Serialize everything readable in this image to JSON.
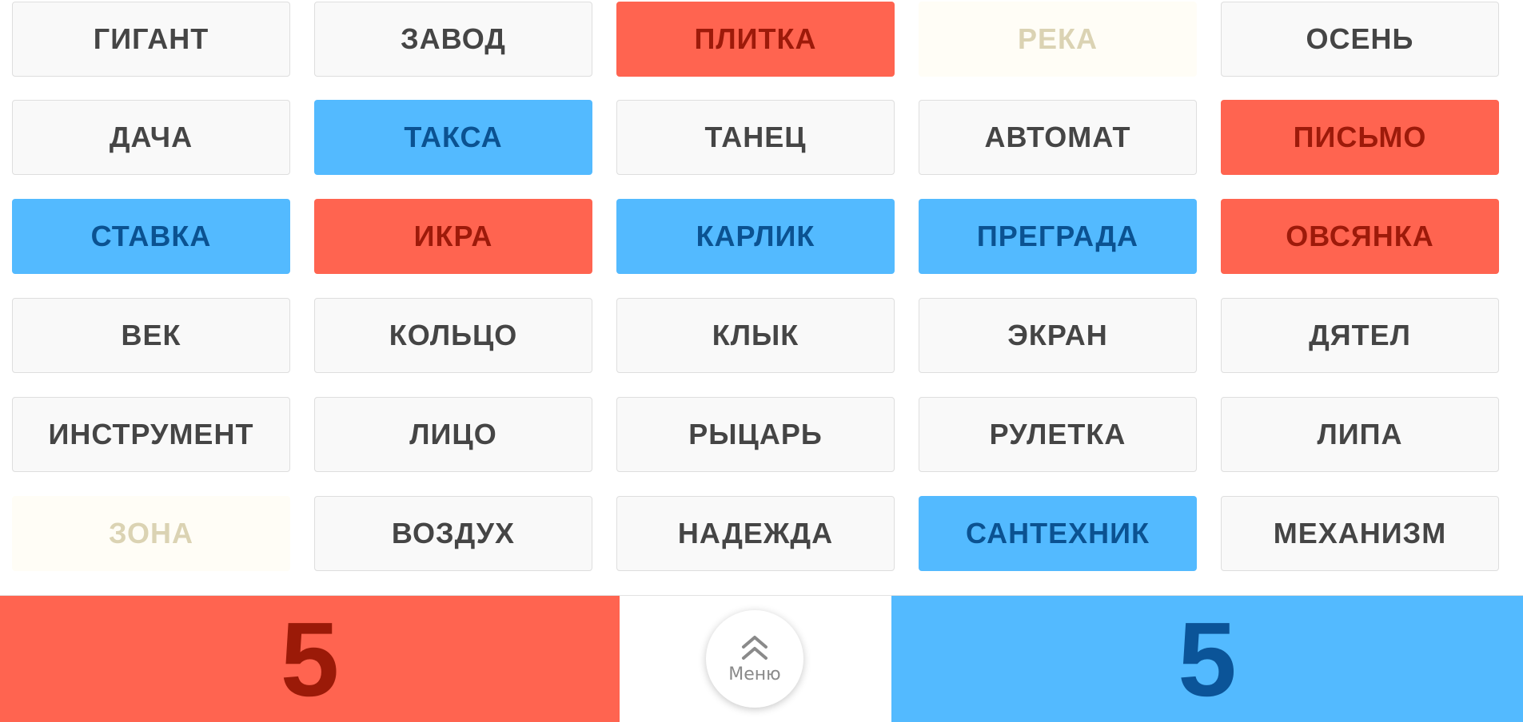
{
  "board": {
    "cards": [
      {
        "word": "ГИГАНТ",
        "state": "neutral-hidden"
      },
      {
        "word": "ЗАВОД",
        "state": "neutral-hidden"
      },
      {
        "word": "ПЛИТКА",
        "state": "red"
      },
      {
        "word": "РЕКА",
        "state": "neutral-open"
      },
      {
        "word": "ОСЕНЬ",
        "state": "neutral-hidden"
      },
      {
        "word": "ДАЧА",
        "state": "neutral-hidden"
      },
      {
        "word": "ТАКСА",
        "state": "blue"
      },
      {
        "word": "ТАНЕЦ",
        "state": "neutral-hidden"
      },
      {
        "word": "АВТОМАТ",
        "state": "neutral-hidden"
      },
      {
        "word": "ПИСЬМО",
        "state": "red"
      },
      {
        "word": "СТАВКА",
        "state": "blue"
      },
      {
        "word": "ИКРА",
        "state": "red"
      },
      {
        "word": "КАРЛИК",
        "state": "blue"
      },
      {
        "word": "ПРЕГРАДА",
        "state": "blue"
      },
      {
        "word": "ОВСЯНКА",
        "state": "red"
      },
      {
        "word": "ВЕК",
        "state": "neutral-hidden"
      },
      {
        "word": "КОЛЬЦО",
        "state": "neutral-hidden"
      },
      {
        "word": "КЛЫК",
        "state": "neutral-hidden"
      },
      {
        "word": "ЭКРАН",
        "state": "neutral-hidden"
      },
      {
        "word": "ДЯТЕЛ",
        "state": "neutral-hidden"
      },
      {
        "word": "ИНСТРУМЕНТ",
        "state": "neutral-hidden"
      },
      {
        "word": "ЛИЦО",
        "state": "neutral-hidden"
      },
      {
        "word": "РЫЦАРЬ",
        "state": "neutral-hidden"
      },
      {
        "word": "РУЛЕТКА",
        "state": "neutral-hidden"
      },
      {
        "word": "ЛИПА",
        "state": "neutral-hidden"
      },
      {
        "word": "ЗОНА",
        "state": "neutral-open"
      },
      {
        "word": "ВОЗДУХ",
        "state": "neutral-hidden"
      },
      {
        "word": "НАДЕЖДА",
        "state": "neutral-hidden"
      },
      {
        "word": "САНТЕХНИК",
        "state": "blue"
      },
      {
        "word": "МЕХАНИЗМ",
        "state": "neutral-hidden"
      }
    ]
  },
  "scores": {
    "red": "5",
    "blue": "5"
  },
  "menu": {
    "label": "Меню",
    "icon": "double-chevron-up-icon"
  },
  "colors": {
    "red": "#ff6450",
    "blue": "#53baff",
    "neutral_hidden": "#f9f9f9",
    "neutral_open": "#fffdf6"
  }
}
